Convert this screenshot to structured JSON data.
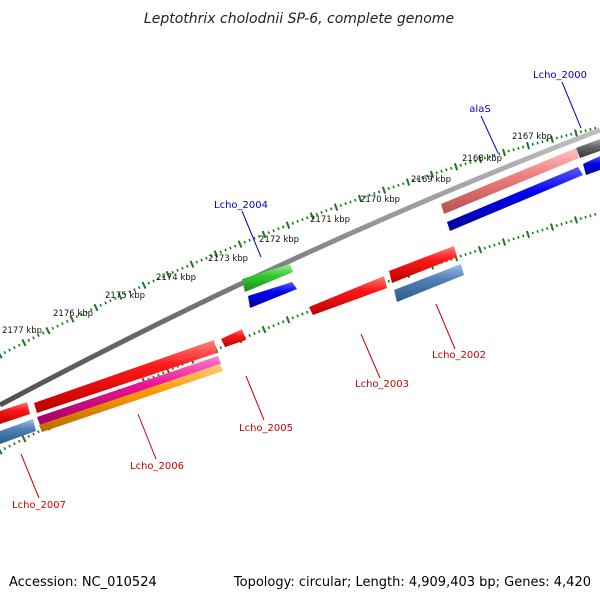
{
  "header": {
    "title": "Leptothrix cholodnii SP-6, complete genome"
  },
  "footer": {
    "accession": "Accession: NC_010524",
    "summary": "Topology: circular; Length: 4,909,403 bp; Genes: 4,420"
  },
  "ruler": {
    "labels": [
      "2177 kbp",
      "2176 kbp",
      "2175 kbp",
      "2174 kbp",
      "2173 kbp",
      "2172 kbp",
      "2171 kbp",
      "2170 kbp",
      "2169 kbp",
      "2168 kbp",
      "2167 kbp"
    ]
  },
  "genes": [
    {
      "label": "Lcho_2000",
      "color": "#0000cc"
    },
    {
      "label": "alaS",
      "color": "#0000cc"
    },
    {
      "label": "Lcho_2004",
      "color": "#0000cc"
    },
    {
      "label": "Lcho_2002",
      "color": "#cc0000"
    },
    {
      "label": "Lcho_2003",
      "color": "#cc0000"
    },
    {
      "label": "Lcho_2005",
      "color": "#cc0000"
    },
    {
      "label": "Lcho_2006",
      "color": "#cc0000"
    },
    {
      "label": "Lcho_2007",
      "color": "#cc0000"
    }
  ],
  "colors": {
    "backbone": "#808080",
    "tick": "#1a7a1a",
    "red": "#ff1a1a",
    "blue": "#0000ee",
    "steelblue": "#5080b8",
    "green": "#33cc33",
    "pink": "#f08080",
    "dark": "#666666",
    "magenta": "#ee1499",
    "orange": "#ff9900"
  }
}
